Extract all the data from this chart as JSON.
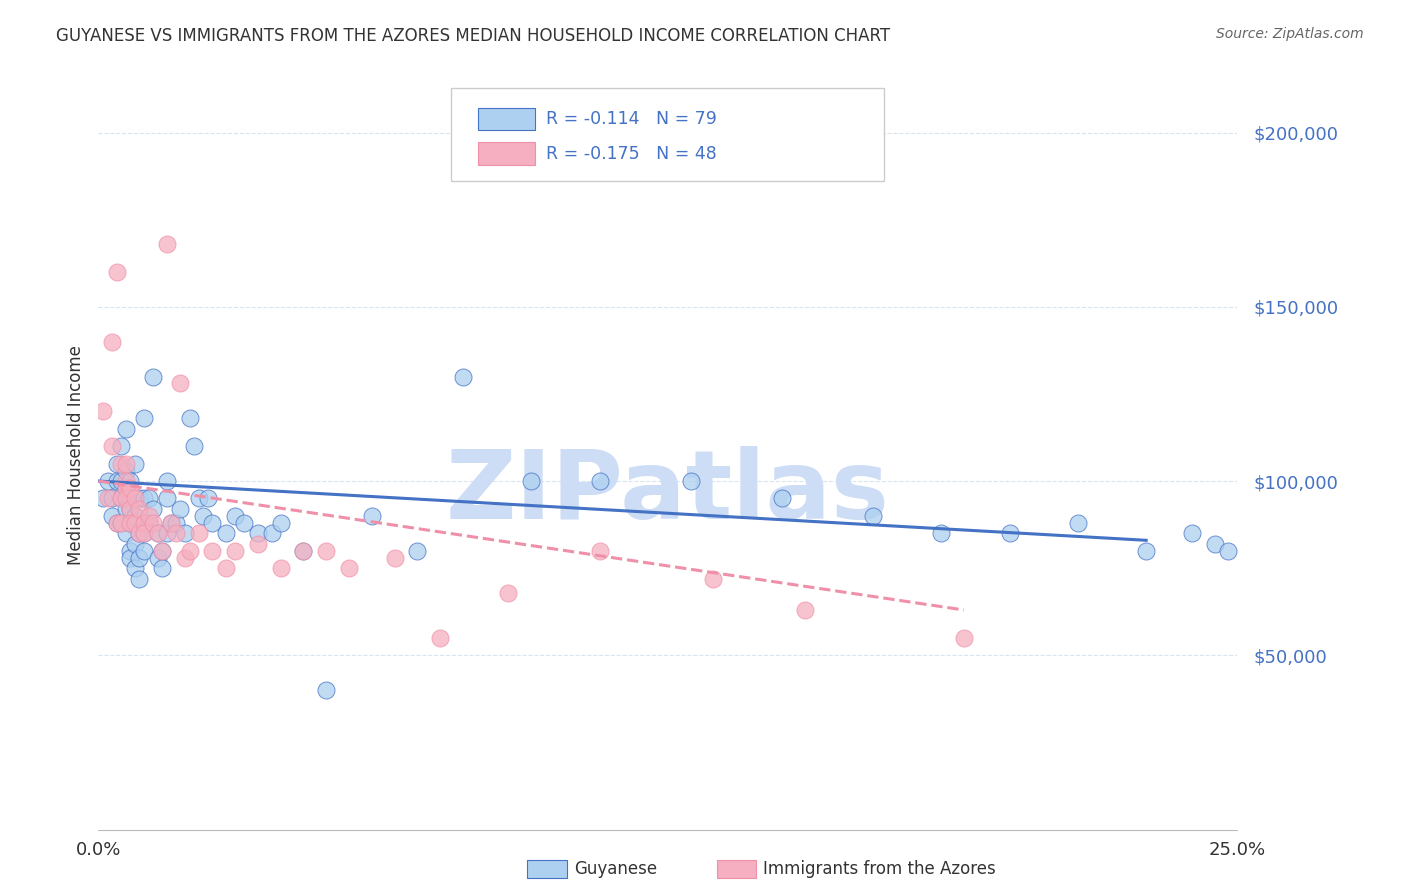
{
  "title": "GUYANESE VS IMMIGRANTS FROM THE AZORES MEDIAN HOUSEHOLD INCOME CORRELATION CHART",
  "source": "Source: ZipAtlas.com",
  "ylabel": "Median Household Income",
  "legend_label1": "Guyanese",
  "legend_label2": "Immigrants from the Azores",
  "r1": -0.114,
  "n1": 79,
  "r2": -0.175,
  "n2": 48,
  "color1": "#add0f0",
  "color2": "#f5afc0",
  "line_color1": "#4472c4",
  "line_color2": "#f090a8",
  "watermark": "ZIPatlas",
  "watermark_color": "#ccddf5",
  "xlim": [
    0,
    0.25
  ],
  "ylim": [
    0,
    215000
  ],
  "yticks": [
    50000,
    100000,
    150000,
    200000
  ],
  "ytick_labels": [
    "$50,000",
    "$100,000",
    "$150,000",
    "$200,000"
  ],
  "grid_color": "#d8e4f0",
  "guyanese_x": [
    0.001,
    0.002,
    0.003,
    0.003,
    0.004,
    0.004,
    0.004,
    0.005,
    0.005,
    0.005,
    0.005,
    0.006,
    0.006,
    0.006,
    0.006,
    0.006,
    0.007,
    0.007,
    0.007,
    0.007,
    0.007,
    0.007,
    0.008,
    0.008,
    0.008,
    0.008,
    0.009,
    0.009,
    0.009,
    0.009,
    0.01,
    0.01,
    0.01,
    0.01,
    0.01,
    0.011,
    0.011,
    0.012,
    0.012,
    0.013,
    0.013,
    0.014,
    0.014,
    0.015,
    0.015,
    0.015,
    0.016,
    0.017,
    0.018,
    0.019,
    0.02,
    0.021,
    0.022,
    0.023,
    0.024,
    0.025,
    0.028,
    0.03,
    0.032,
    0.035,
    0.038,
    0.04,
    0.045,
    0.05,
    0.06,
    0.07,
    0.08,
    0.095,
    0.11,
    0.13,
    0.15,
    0.17,
    0.185,
    0.2,
    0.215,
    0.23,
    0.24,
    0.245,
    0.248
  ],
  "guyanese_y": [
    95000,
    100000,
    90000,
    95000,
    88000,
    105000,
    100000,
    95000,
    100000,
    110000,
    88000,
    85000,
    92000,
    98000,
    103000,
    115000,
    80000,
    88000,
    95000,
    100000,
    92000,
    78000,
    75000,
    82000,
    90000,
    105000,
    72000,
    78000,
    85000,
    95000,
    118000,
    88000,
    85000,
    95000,
    80000,
    88000,
    95000,
    130000,
    92000,
    85000,
    78000,
    80000,
    75000,
    95000,
    100000,
    85000,
    88000,
    88000,
    92000,
    85000,
    118000,
    110000,
    95000,
    90000,
    95000,
    88000,
    85000,
    90000,
    88000,
    85000,
    85000,
    88000,
    80000,
    40000,
    90000,
    80000,
    130000,
    100000,
    100000,
    100000,
    95000,
    90000,
    85000,
    85000,
    88000,
    80000,
    85000,
    82000,
    80000
  ],
  "azores_x": [
    0.001,
    0.002,
    0.003,
    0.003,
    0.004,
    0.004,
    0.005,
    0.005,
    0.005,
    0.006,
    0.006,
    0.006,
    0.006,
    0.007,
    0.007,
    0.007,
    0.008,
    0.008,
    0.009,
    0.009,
    0.01,
    0.01,
    0.011,
    0.012,
    0.013,
    0.014,
    0.015,
    0.016,
    0.017,
    0.018,
    0.019,
    0.02,
    0.022,
    0.025,
    0.028,
    0.03,
    0.035,
    0.04,
    0.045,
    0.05,
    0.055,
    0.065,
    0.075,
    0.09,
    0.11,
    0.135,
    0.155,
    0.19
  ],
  "azores_y": [
    120000,
    95000,
    140000,
    110000,
    160000,
    88000,
    105000,
    95000,
    88000,
    98000,
    105000,
    100000,
    95000,
    92000,
    98000,
    88000,
    95000,
    88000,
    85000,
    92000,
    88000,
    85000,
    90000,
    88000,
    85000,
    80000,
    168000,
    88000,
    85000,
    128000,
    78000,
    80000,
    85000,
    80000,
    75000,
    80000,
    82000,
    75000,
    80000,
    80000,
    75000,
    78000,
    55000,
    68000,
    80000,
    72000,
    63000,
    55000
  ],
  "trendline_guyanese_x0": 0.0,
  "trendline_guyanese_y0": 100000,
  "trendline_guyanese_x1": 0.23,
  "trendline_guyanese_y1": 83000,
  "trendline_azores_x0": 0.0,
  "trendline_azores_y0": 100000,
  "trendline_azores_x1": 0.19,
  "trendline_azores_y1": 63000
}
